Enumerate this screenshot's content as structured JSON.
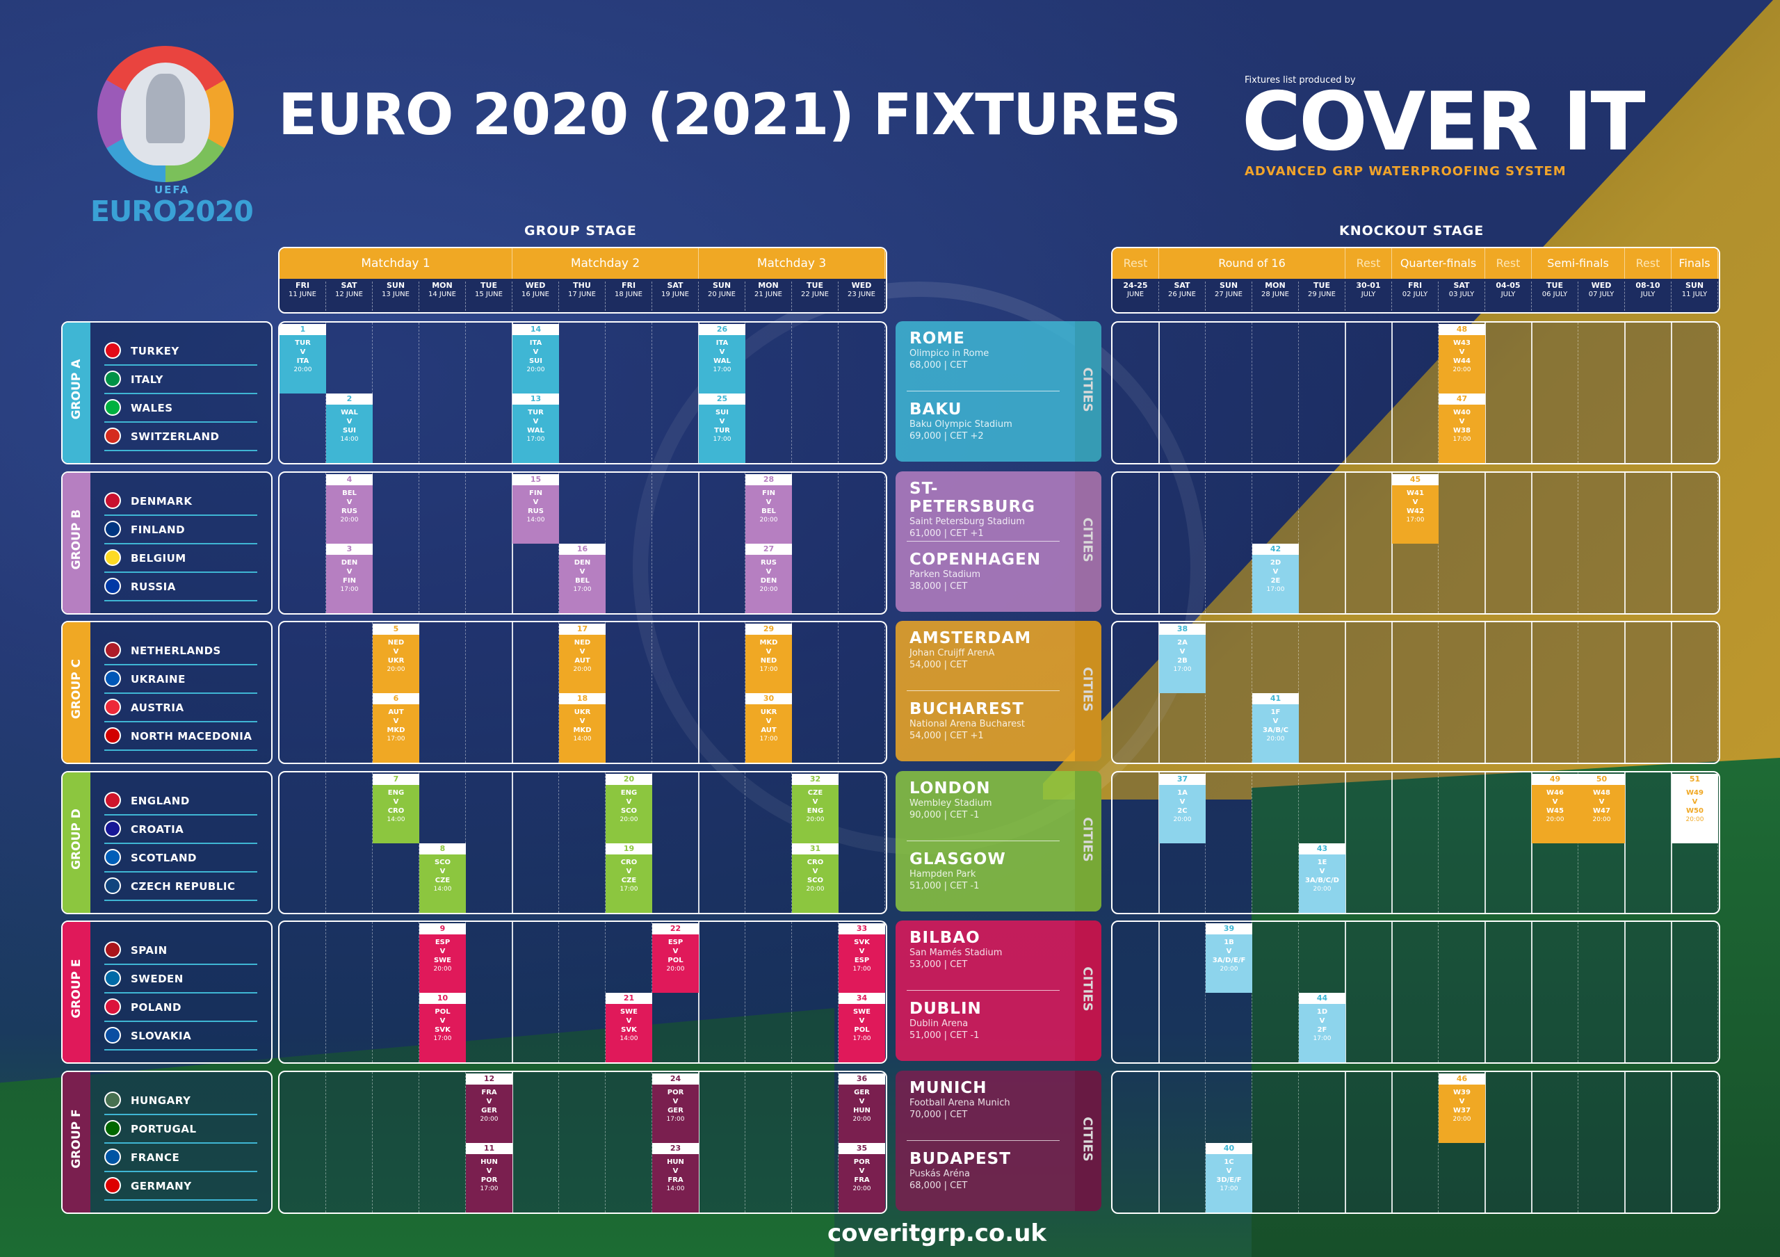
{
  "title": "EURO 2020 (2021) FIXTURES",
  "logo": {
    "uefa": "UEFA",
    "euro": "EURO2020"
  },
  "sponsor": {
    "small": "Fixtures list produced by",
    "big": "COVER IT",
    "tag": "ADVANCED GRP WATERPROOFING SYSTEM"
  },
  "stages": {
    "group": "GROUP STAGE",
    "knockout": "KNOCKOUT STAGE"
  },
  "group_header": {
    "matchdays": [
      "Matchday 1",
      "Matchday 2",
      "Matchday 3"
    ],
    "days": [
      [
        "FRI",
        "11 JUNE"
      ],
      [
        "SAT",
        "12 JUNE"
      ],
      [
        "SUN",
        "13 JUNE"
      ],
      [
        "MON",
        "14 JUNE"
      ],
      [
        "TUE",
        "15 JUNE"
      ],
      [
        "WED",
        "16 JUNE"
      ],
      [
        "THU",
        "17 JUNE"
      ],
      [
        "FRI",
        "18 JUNE"
      ],
      [
        "SAT",
        "19 JUNE"
      ],
      [
        "SUN",
        "20 JUNE"
      ],
      [
        "MON",
        "21 JUNE"
      ],
      [
        "TUE",
        "22 JUNE"
      ],
      [
        "WED",
        "23 JUNE"
      ]
    ]
  },
  "ko_header": {
    "rounds": [
      "Rest",
      "Round of 16",
      "Rest",
      "Quarter-finals",
      "Rest",
      "Semi-finals",
      "Rest",
      "Finals"
    ],
    "days": [
      [
        "24-25",
        "JUNE"
      ],
      [
        "SAT",
        "26 JUNE"
      ],
      [
        "SUN",
        "27 JUNE"
      ],
      [
        "MON",
        "28 JUNE"
      ],
      [
        "TUE",
        "29 JUNE"
      ],
      [
        "30-01",
        "JULY"
      ],
      [
        "FRI",
        "02 JULY"
      ],
      [
        "SAT",
        "03 JULY"
      ],
      [
        "04-05",
        "JULY"
      ],
      [
        "TUE",
        "06 JULY"
      ],
      [
        "WED",
        "07 JULY"
      ],
      [
        "08-10",
        "JULY"
      ],
      [
        "SUN",
        "11 JULY"
      ]
    ]
  },
  "groups": [
    {
      "name": "GROUP A",
      "color": "#3fb6d4",
      "teams": [
        "TURKEY",
        "ITALY",
        "WALES",
        "SWITZERLAND"
      ],
      "flags": [
        "#e30a17",
        "#009246",
        "#00b140",
        "#d52b1e"
      ],
      "cities": [
        {
          "name": "ROME",
          "info1": "Olimpico in Rome",
          "info2": "68,000 | CET"
        },
        {
          "name": "BAKU",
          "info1": "Baku Olympic Stadium",
          "info2": "69,000 | CET +2"
        }
      ]
    },
    {
      "name": "GROUP B",
      "color": "#b67fc1",
      "teams": [
        "DENMARK",
        "FINLAND",
        "BELGIUM",
        "RUSSIA"
      ],
      "flags": [
        "#c8102e",
        "#003580",
        "#fdda24",
        "#0039a6"
      ],
      "cities": [
        {
          "name": "ST-PETERSBURG",
          "info1": "Saint Petersburg Stadium",
          "info2": "61,000 | CET +1"
        },
        {
          "name": "COPENHAGEN",
          "info1": "Parken Stadium",
          "info2": "38,000 | CET"
        }
      ]
    },
    {
      "name": "GROUP C",
      "color": "#f0a824",
      "teams": [
        "NETHERLANDS",
        "UKRAINE",
        "AUSTRIA",
        "NORTH MACEDONIA"
      ],
      "flags": [
        "#ae1c28",
        "#0057b7",
        "#ed2939",
        "#d20000"
      ],
      "cities": [
        {
          "name": "AMSTERDAM",
          "info1": "Johan Cruijff ArenA",
          "info2": "54,000 | CET"
        },
        {
          "name": "BUCHAREST",
          "info1": "National Arena Bucharest",
          "info2": "54,000 | CET +1"
        }
      ]
    },
    {
      "name": "GROUP D",
      "color": "#8cc63f",
      "teams": [
        "ENGLAND",
        "CROATIA",
        "SCOTLAND",
        "CZECH REPUBLIC"
      ],
      "flags": [
        "#cf142b",
        "#171796",
        "#005eb8",
        "#11457e"
      ],
      "cities": [
        {
          "name": "LONDON",
          "info1": "Wembley Stadium",
          "info2": "90,000 | CET -1"
        },
        {
          "name": "GLASGOW",
          "info1": "Hampden Park",
          "info2": "51,000 | CET -1"
        }
      ]
    },
    {
      "name": "GROUP E",
      "color": "#e0195a",
      "teams": [
        "SPAIN",
        "SWEDEN",
        "POLAND",
        "SLOVAKIA"
      ],
      "flags": [
        "#aa151b",
        "#006aa7",
        "#dc143c",
        "#0b4ea2"
      ],
      "cities": [
        {
          "name": "BILBAO",
          "info1": "San Mamés Stadium",
          "info2": "53,000 | CET"
        },
        {
          "name": "DUBLIN",
          "info1": "Dublin Arena",
          "info2": "51,000 | CET -1"
        }
      ]
    },
    {
      "name": "GROUP F",
      "color": "#7a1f4f",
      "teams": [
        "HUNGARY",
        "PORTUGAL",
        "FRANCE",
        "GERMANY"
      ],
      "flags": [
        "#477050",
        "#006600",
        "#0055a4",
        "#dd0000"
      ],
      "cities": [
        {
          "name": "MUNICH",
          "info1": "Football Arena Munich",
          "info2": "70,000 | CET"
        },
        {
          "name": "BUDAPEST",
          "info1": "Puskás Aréna",
          "info2": "68,000 | CET"
        }
      ]
    }
  ],
  "cities_label": "CITIES",
  "group_matches": [
    {
      "g": 0,
      "day": 0,
      "row": 0,
      "num": "1",
      "a": "TUR",
      "b": "ITA",
      "time": "20:00"
    },
    {
      "g": 0,
      "day": 1,
      "row": 1,
      "num": "2",
      "a": "WAL",
      "b": "SUI",
      "time": "14:00"
    },
    {
      "g": 0,
      "day": 5,
      "row": 0,
      "num": "14",
      "a": "ITA",
      "b": "SUI",
      "time": "20:00"
    },
    {
      "g": 0,
      "day": 5,
      "row": 1,
      "num": "13",
      "a": "TUR",
      "b": "WAL",
      "time": "17:00"
    },
    {
      "g": 0,
      "day": 9,
      "row": 0,
      "num": "26",
      "a": "ITA",
      "b": "WAL",
      "time": "17:00"
    },
    {
      "g": 0,
      "day": 9,
      "row": 1,
      "num": "25",
      "a": "SUI",
      "b": "TUR",
      "time": "17:00"
    },
    {
      "g": 1,
      "day": 1,
      "row": 0,
      "num": "4",
      "a": "BEL",
      "b": "RUS",
      "time": "20:00"
    },
    {
      "g": 1,
      "day": 1,
      "row": 1,
      "num": "3",
      "a": "DEN",
      "b": "FIN",
      "time": "17:00"
    },
    {
      "g": 1,
      "day": 5,
      "row": 0,
      "num": "15",
      "a": "FIN",
      "b": "RUS",
      "time": "14:00"
    },
    {
      "g": 1,
      "day": 6,
      "row": 1,
      "num": "16",
      "a": "DEN",
      "b": "BEL",
      "time": "17:00"
    },
    {
      "g": 1,
      "day": 10,
      "row": 0,
      "num": "28",
      "a": "FIN",
      "b": "BEL",
      "time": "20:00"
    },
    {
      "g": 1,
      "day": 10,
      "row": 1,
      "num": "27",
      "a": "RUS",
      "b": "DEN",
      "time": "20:00"
    },
    {
      "g": 2,
      "day": 2,
      "row": 0,
      "num": "5",
      "a": "NED",
      "b": "UKR",
      "time": "20:00"
    },
    {
      "g": 2,
      "day": 2,
      "row": 1,
      "num": "6",
      "a": "AUT",
      "b": "MKD",
      "time": "17:00"
    },
    {
      "g": 2,
      "day": 6,
      "row": 0,
      "num": "17",
      "a": "NED",
      "b": "AUT",
      "time": "20:00"
    },
    {
      "g": 2,
      "day": 6,
      "row": 1,
      "num": "18",
      "a": "UKR",
      "b": "MKD",
      "time": "14:00"
    },
    {
      "g": 2,
      "day": 10,
      "row": 0,
      "num": "29",
      "a": "MKD",
      "b": "NED",
      "time": "17:00"
    },
    {
      "g": 2,
      "day": 10,
      "row": 1,
      "num": "30",
      "a": "UKR",
      "b": "AUT",
      "time": "17:00"
    },
    {
      "g": 3,
      "day": 2,
      "row": 0,
      "num": "7",
      "a": "ENG",
      "b": "CRO",
      "time": "14:00"
    },
    {
      "g": 3,
      "day": 3,
      "row": 1,
      "num": "8",
      "a": "SCO",
      "b": "CZE",
      "time": "14:00"
    },
    {
      "g": 3,
      "day": 7,
      "row": 0,
      "num": "20",
      "a": "ENG",
      "b": "SCO",
      "time": "20:00"
    },
    {
      "g": 3,
      "day": 7,
      "row": 1,
      "num": "19",
      "a": "CRO",
      "b": "CZE",
      "time": "17:00"
    },
    {
      "g": 3,
      "day": 11,
      "row": 0,
      "num": "32",
      "a": "CZE",
      "b": "ENG",
      "time": "20:00"
    },
    {
      "g": 3,
      "day": 11,
      "row": 1,
      "num": "31",
      "a": "CRO",
      "b": "SCO",
      "time": "20:00"
    },
    {
      "g": 4,
      "day": 3,
      "row": 0,
      "num": "9",
      "a": "ESP",
      "b": "SWE",
      "time": "20:00"
    },
    {
      "g": 4,
      "day": 3,
      "row": 1,
      "num": "10",
      "a": "POL",
      "b": "SVK",
      "time": "17:00"
    },
    {
      "g": 4,
      "day": 8,
      "row": 0,
      "num": "22",
      "a": "ESP",
      "b": "POL",
      "time": "20:00"
    },
    {
      "g": 4,
      "day": 7,
      "row": 1,
      "num": "21",
      "a": "SWE",
      "b": "SVK",
      "time": "14:00"
    },
    {
      "g": 4,
      "day": 12,
      "row": 0,
      "num": "33",
      "a": "SVK",
      "b": "ESP",
      "time": "17:00"
    },
    {
      "g": 4,
      "day": 12,
      "row": 1,
      "num": "34",
      "a": "SWE",
      "b": "POL",
      "time": "17:00"
    },
    {
      "g": 5,
      "day": 4,
      "row": 0,
      "num": "12",
      "a": "FRA",
      "b": "GER",
      "time": "20:00"
    },
    {
      "g": 5,
      "day": 4,
      "row": 1,
      "num": "11",
      "a": "HUN",
      "b": "POR",
      "time": "17:00"
    },
    {
      "g": 5,
      "day": 8,
      "row": 0,
      "num": "24",
      "a": "POR",
      "b": "GER",
      "time": "17:00"
    },
    {
      "g": 5,
      "day": 8,
      "row": 1,
      "num": "23",
      "a": "HUN",
      "b": "FRA",
      "time": "14:00"
    },
    {
      "g": 5,
      "day": 12,
      "row": 0,
      "num": "36",
      "a": "GER",
      "b": "HUN",
      "time": "20:00"
    },
    {
      "g": 5,
      "day": 12,
      "row": 1,
      "num": "35",
      "a": "POR",
      "b": "FRA",
      "time": "20:00"
    }
  ],
  "ko_matches": [
    {
      "g": 0,
      "day": 7,
      "row": 0,
      "num": "48",
      "a": "W43",
      "b": "W44",
      "time": "20:00"
    },
    {
      "g": 0,
      "day": 7,
      "row": 1,
      "num": "47",
      "a": "W40",
      "b": "W38",
      "time": "17:00"
    },
    {
      "g": 1,
      "day": 6,
      "row": 0,
      "num": "45",
      "a": "W41",
      "b": "W42",
      "time": "17:00"
    },
    {
      "g": 1,
      "day": 3,
      "row": 1,
      "num": "42",
      "a": "2D",
      "b": "2E",
      "time": "17:00"
    },
    {
      "g": 2,
      "day": 1,
      "row": 0,
      "num": "38",
      "a": "2A",
      "b": "2B",
      "time": "17:00"
    },
    {
      "g": 2,
      "day": 3,
      "row": 1,
      "num": "41",
      "a": "1F",
      "b": "3A/B/C",
      "time": "20:00"
    },
    {
      "g": 3,
      "day": 1,
      "row": 0,
      "num": "37",
      "a": "1A",
      "b": "2C",
      "time": "20:00"
    },
    {
      "g": 3,
      "day": 4,
      "row": 1,
      "num": "43",
      "a": "1E",
      "b": "3A/B/C/D",
      "time": "20:00"
    },
    {
      "g": 3,
      "day": 9,
      "row": 0,
      "num": "49",
      "a": "W46",
      "b": "W45",
      "time": "20:00"
    },
    {
      "g": 3,
      "day": 10,
      "row": 0,
      "num": "50",
      "a": "W48",
      "b": "W47",
      "time": "20:00"
    },
    {
      "g": 3,
      "day": 12,
      "row": 0,
      "num": "51",
      "a": "W49",
      "b": "W50",
      "time": "20:00"
    },
    {
      "g": 4,
      "day": 2,
      "row": 0,
      "num": "39",
      "a": "1B",
      "b": "3A/D/E/F",
      "time": "20:00"
    },
    {
      "g": 4,
      "day": 4,
      "row": 1,
      "num": "44",
      "a": "1D",
      "b": "2F",
      "time": "17:00"
    },
    {
      "g": 5,
      "day": 7,
      "row": 0,
      "num": "46",
      "a": "W39",
      "b": "W37",
      "time": "20:00"
    },
    {
      "g": 5,
      "day": 2,
      "row": 1,
      "num": "40",
      "a": "1C",
      "b": "3D/E/F",
      "time": "17:00"
    }
  ],
  "footer": "coveritgrp.co.uk",
  "colors": {
    "orange": "#f0a824",
    "navy": "#1d2e63",
    "ko_qf": "#f0a824",
    "ko_r16": "#8dd4ec",
    "final": "#ffffff"
  }
}
